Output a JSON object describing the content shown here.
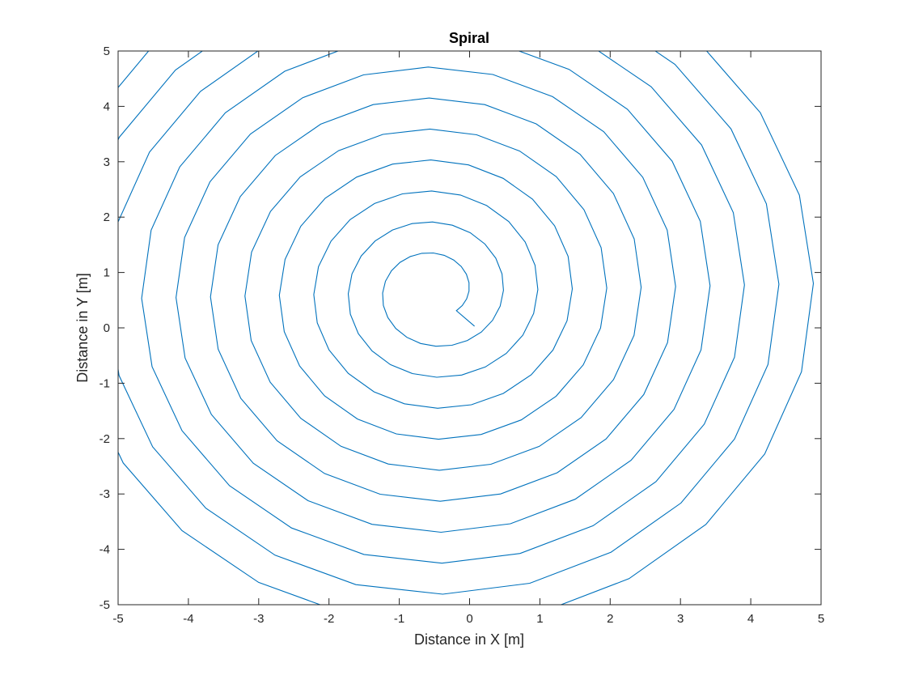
{
  "chart_data": {
    "type": "line",
    "title": "Spiral",
    "xlabel": "Distance in X [m]",
    "ylabel": "Distance in Y [m]",
    "xlim": [
      -5,
      5
    ],
    "ylim": [
      -5,
      5
    ],
    "xticks": [
      -5,
      -4,
      -3,
      -2,
      -1,
      0,
      1,
      2,
      3,
      4,
      5
    ],
    "yticks": [
      -5,
      -4,
      -3,
      -2,
      -1,
      0,
      1,
      2,
      3,
      4,
      5
    ],
    "grid": false,
    "line_color": "#0072BD",
    "series": [
      {
        "start": [
          0.07,
          0.03
        ],
        "center": [
          -0.5,
          0.65
        ],
        "radius_x_per_turn": 0.49,
        "radius_y_per_turn": 0.56,
        "turns_to_frame_edge": 11.5
      }
    ]
  }
}
